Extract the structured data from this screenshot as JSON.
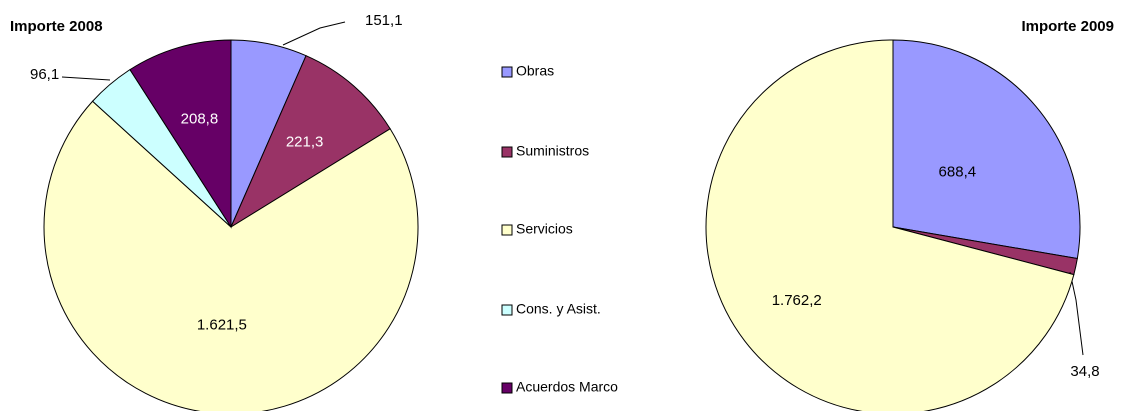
{
  "chart_data": [
    {
      "type": "pie",
      "title": "Importe 2008",
      "categories": [
        "Obras",
        "Suministros",
        "Servicios",
        "Cons. y Asist.",
        "Acuerdos Marco"
      ],
      "values": [
        151.1,
        221.3,
        1621.5,
        96.1,
        208.8
      ],
      "value_labels": [
        "151,1",
        "221,3",
        "1.621,5",
        "96,1",
        "208,8"
      ],
      "colors": [
        "#9999ff",
        "#993366",
        "#ffffcc",
        "#ccffff",
        "#660066"
      ]
    },
    {
      "type": "pie",
      "title": "Importe 2009",
      "values": [
        688.4,
        34.8,
        1762.2
      ],
      "value_labels": [
        "688,4",
        "34,8",
        "1.762,2"
      ],
      "colors": [
        "#9999ff",
        "#993366",
        "#ffffcc"
      ]
    }
  ]
}
